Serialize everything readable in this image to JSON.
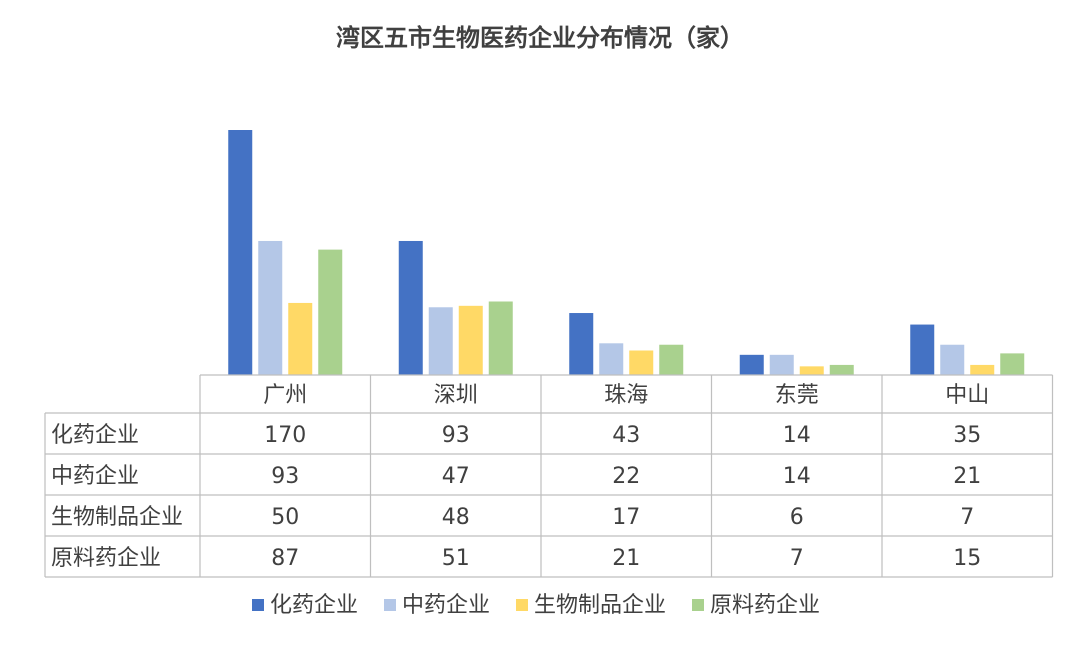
{
  "chart_data": {
    "type": "bar",
    "title": "湾区五市生物医药企业分布情况（家）",
    "categories": [
      "广州",
      "深圳",
      "珠海",
      "东莞",
      "中山"
    ],
    "series": [
      {
        "name": "化药企业",
        "values": [
          170,
          93,
          43,
          14,
          35
        ],
        "color": "#4472C4"
      },
      {
        "name": "中药企业",
        "values": [
          93,
          47,
          22,
          14,
          21
        ],
        "color": "#B4C7E7"
      },
      {
        "name": "生物制品企业",
        "values": [
          50,
          48,
          17,
          6,
          7
        ],
        "color": "#FFD966"
      },
      {
        "name": "原料药企业",
        "values": [
          87,
          51,
          21,
          7,
          15
        ],
        "color": "#A9D18E"
      }
    ],
    "ylim": [
      0,
      170
    ],
    "grid": false,
    "legend": "bottom",
    "data_table": true
  }
}
